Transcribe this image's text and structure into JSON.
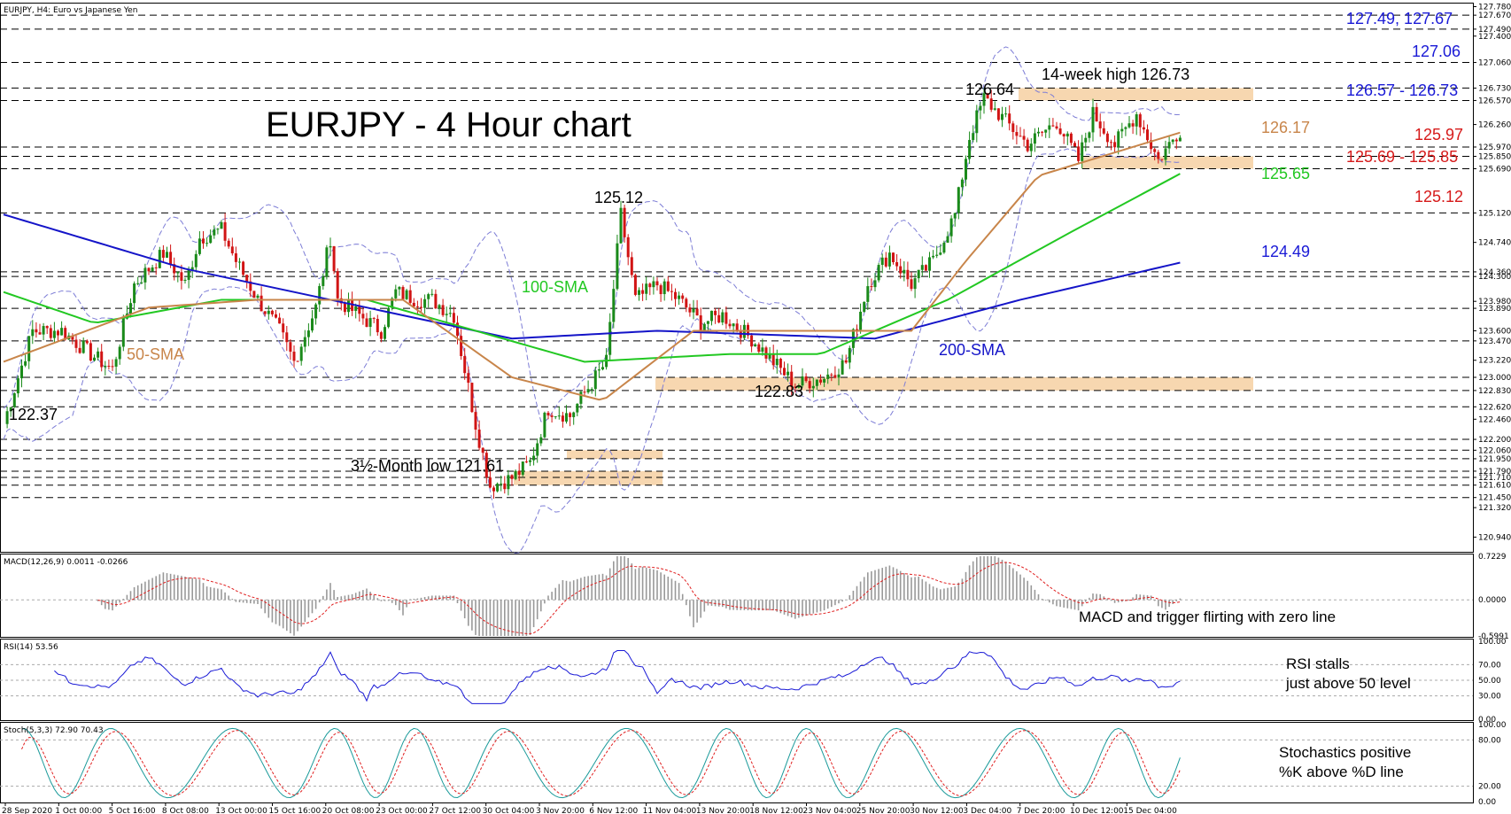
{
  "header": {
    "symbol_line": "EURJPY, H4:  Euro vs Japanese Yen",
    "title": "EURJPY - 4 Hour chart"
  },
  "colors": {
    "bull": "#1a8a1a",
    "bear": "#d11414",
    "sma50": "#c8854a",
    "sma100": "#22c822",
    "sma200": "#1414c8",
    "bollinger": "#7d7dd6",
    "zone": "#f7d7b0",
    "blue_level": "#1a1ad6",
    "red_level": "#d61a1a",
    "orange_level": "#c8854a",
    "green_level": "#22c822"
  },
  "annotations": {
    "low_1": "122.37",
    "high_nov": "125.12",
    "low_nov": "122.83",
    "low_oct": "3½-Month low 121.61",
    "high_dec": "126.64",
    "week_high": "14-week high 126.73",
    "sma50": "50-SMA",
    "sma100": "100-SMA",
    "sma200": "200-SMA"
  },
  "right_levels": [
    {
      "text": "127.49, 127.67",
      "color": "blue"
    },
    {
      "text": "127.06",
      "color": "blue"
    },
    {
      "text": "126.57 - 126.73",
      "color": "blue"
    },
    {
      "text": "126.17",
      "color": "orange"
    },
    {
      "text": "125.97",
      "color": "red"
    },
    {
      "text": "125.69 - 125.85",
      "color": "red"
    },
    {
      "text": "125.65",
      "color": "green"
    },
    {
      "text": "125.12",
      "color": "red"
    },
    {
      "text": "124.49",
      "color": "blue"
    }
  ],
  "axis": {
    "price_ticks": [
      "127.780",
      "127.670",
      "127.490",
      "127.400",
      "127.060",
      "126.730",
      "126.570",
      "126.260",
      "125.970",
      "125.850",
      "125.690",
      "125.120",
      "124.740",
      "124.360",
      "124.300",
      "123.980",
      "123.890",
      "123.600",
      "123.470",
      "123.220",
      "123.000",
      "122.830",
      "122.620",
      "122.460",
      "122.200",
      "122.060",
      "121.950",
      "121.790",
      "121.710",
      "121.610",
      "121.450",
      "121.320",
      "120.940"
    ],
    "macd_ticks": [
      "0.7229",
      "0.0000",
      "-0.5991"
    ],
    "rsi_ticks": [
      "100.00",
      "70.00",
      "50.00",
      "30.00",
      "0.00"
    ],
    "stoch_ticks": [
      "100.00",
      "80.00",
      "20.00",
      "0.00"
    ],
    "dates": [
      "28 Sep 2020",
      "1 Oct 00:00",
      "5 Oct 16:00",
      "8 Oct 08:00",
      "13 Oct 00:00",
      "15 Oct 16:00",
      "20 Oct 08:00",
      "23 Oct 00:00",
      "27 Oct 12:00",
      "30 Oct 04:00",
      "3 Nov 20:00",
      "6 Nov 12:00",
      "11 Nov 04:00",
      "13 Nov 20:00",
      "18 Nov 12:00",
      "23 Nov 04:00",
      "25 Nov 20:00",
      "30 Nov 12:00",
      "3 Dec 04:00",
      "7 Dec 20:00",
      "10 Dec 12:00",
      "15 Dec 04:00"
    ]
  },
  "panels": {
    "macd_label": "MACD(12,26,9) 0.0011 -0.0266",
    "macd_note": "MACD and trigger flirting with zero line",
    "rsi_label": "RSI(14) 53.56",
    "rsi_note_1": "RSI stalls",
    "rsi_note_2": "just above 50 level",
    "stoch_label": "Stoch(5,3,3) 72.90 70.43",
    "stoch_note_1": "Stochastics positive",
    "stoch_note_2": "%K above %D line"
  },
  "chart_data": {
    "type": "candlestick",
    "title": "EURJPY - 4 Hour chart",
    "price_range": [
      120.75,
      127.82
    ],
    "grid": false,
    "horizontal_levels": [
      127.67,
      127.49,
      127.06,
      126.73,
      126.57,
      125.97,
      125.85,
      125.69,
      125.12,
      124.36,
      124.3,
      123.89,
      123.47,
      123.0,
      122.83,
      122.62,
      122.2,
      122.06,
      121.95,
      121.79,
      121.71,
      121.61,
      121.45
    ],
    "zones": [
      {
        "from": 126.57,
        "to": 126.73
      },
      {
        "from": 125.69,
        "to": 125.85
      },
      {
        "from": 122.83,
        "to": 123.0
      },
      {
        "from": 121.95,
        "to": 122.06
      },
      {
        "from": 121.61,
        "to": 121.79
      }
    ],
    "price_path": [
      [
        0,
        122.4
      ],
      [
        8,
        123.6
      ],
      [
        16,
        123.6
      ],
      [
        24,
        123.3
      ],
      [
        30,
        123.1
      ],
      [
        36,
        124.2
      ],
      [
        44,
        124.6
      ],
      [
        50,
        124.2
      ],
      [
        54,
        124.8
      ],
      [
        60,
        124.9
      ],
      [
        64,
        124.5
      ],
      [
        70,
        124.0
      ],
      [
        76,
        123.6
      ],
      [
        80,
        123.2
      ],
      [
        86,
        123.9
      ],
      [
        90,
        124.8
      ],
      [
        92,
        124.0
      ],
      [
        98,
        123.8
      ],
      [
        104,
        123.6
      ],
      [
        108,
        124.1
      ],
      [
        114,
        124.0
      ],
      [
        118,
        124.0
      ],
      [
        124,
        123.8
      ],
      [
        130,
        122.4
      ],
      [
        134,
        121.6
      ],
      [
        140,
        121.7
      ],
      [
        145,
        121.9
      ],
      [
        150,
        122.6
      ],
      [
        156,
        122.5
      ],
      [
        160,
        122.8
      ],
      [
        166,
        123.2
      ],
      [
        170,
        125.1
      ],
      [
        174,
        124.0
      ],
      [
        180,
        124.2
      ],
      [
        186,
        124.0
      ],
      [
        192,
        123.7
      ],
      [
        198,
        123.8
      ],
      [
        206,
        123.5
      ],
      [
        212,
        123.2
      ],
      [
        218,
        122.9
      ],
      [
        226,
        123.0
      ],
      [
        232,
        123.2
      ],
      [
        238,
        124.2
      ],
      [
        244,
        124.6
      ],
      [
        250,
        124.2
      ],
      [
        256,
        124.5
      ],
      [
        262,
        125.1
      ],
      [
        266,
        126.1
      ],
      [
        270,
        126.6
      ],
      [
        276,
        126.3
      ],
      [
        282,
        126.0
      ],
      [
        290,
        126.3
      ],
      [
        296,
        125.8
      ],
      [
        300,
        126.4
      ],
      [
        306,
        126.0
      ],
      [
        312,
        126.4
      ],
      [
        318,
        125.8
      ],
      [
        324,
        126.2
      ]
    ],
    "sma50": [
      [
        0,
        123.2
      ],
      [
        40,
        123.9
      ],
      [
        70,
        124.0
      ],
      [
        110,
        124.0
      ],
      [
        140,
        123.0
      ],
      [
        165,
        122.7
      ],
      [
        190,
        123.6
      ],
      [
        220,
        123.6
      ],
      [
        250,
        123.6
      ],
      [
        265,
        124.5
      ],
      [
        285,
        125.6
      ],
      [
        325,
        126.17
      ]
    ],
    "sma100": [
      [
        0,
        124.1
      ],
      [
        25,
        123.7
      ],
      [
        60,
        124.0
      ],
      [
        100,
        124.0
      ],
      [
        130,
        123.6
      ],
      [
        160,
        123.2
      ],
      [
        200,
        123.3
      ],
      [
        225,
        123.3
      ],
      [
        260,
        124.0
      ],
      [
        295,
        124.9
      ],
      [
        325,
        125.65
      ]
    ],
    "sma200": [
      [
        0,
        125.1
      ],
      [
        50,
        124.4
      ],
      [
        100,
        123.9
      ],
      [
        140,
        123.5
      ],
      [
        180,
        123.6
      ],
      [
        240,
        123.5
      ],
      [
        280,
        124.0
      ],
      [
        325,
        124.49
      ]
    ],
    "macd": {
      "range": [
        -0.5991,
        0.7229
      ],
      "current": 0.0011,
      "signal": -0.0266
    },
    "rsi": {
      "range": [
        0,
        100
      ],
      "levels": [
        30,
        50,
        70
      ],
      "current": 53.56
    },
    "stochastic": {
      "range": [
        0,
        100
      ],
      "levels": [
        20,
        80
      ],
      "k": 72.9,
      "d": 70.43
    }
  }
}
